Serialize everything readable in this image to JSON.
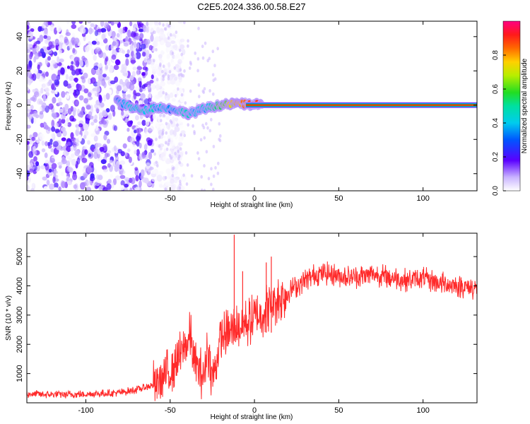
{
  "title": "C2E5.2024.336.00.58.E27",
  "chart_data": [
    {
      "type": "heatmap",
      "xlabel": "Height of straight line (km)",
      "ylabel": "Frequency (Hz)",
      "xlim": [
        -135,
        132
      ],
      "ylim": [
        -50,
        49
      ],
      "x_ticks": [
        -100,
        -50,
        0,
        50,
        100
      ],
      "x_tick_labels": [
        "-100",
        "-50",
        "0",
        "50",
        "100"
      ],
      "y_ticks": [
        -40,
        -20,
        0,
        20,
        40
      ],
      "y_tick_labels": [
        "-40",
        "-20",
        "0",
        "20",
        "40"
      ],
      "noise_region_x": [
        -135,
        -60
      ],
      "signal_track": [
        {
          "x": -82,
          "y": 3,
          "amp": 0.3
        },
        {
          "x": -78,
          "y": 1,
          "amp": 0.4
        },
        {
          "x": -72,
          "y": -2,
          "amp": 0.4
        },
        {
          "x": -65,
          "y": -3,
          "amp": 0.45
        },
        {
          "x": -58,
          "y": -1,
          "amp": 0.4
        },
        {
          "x": -52,
          "y": -2,
          "amp": 0.35
        },
        {
          "x": -45,
          "y": -3,
          "amp": 0.4
        },
        {
          "x": -40,
          "y": -5,
          "amp": 0.45
        },
        {
          "x": -35,
          "y": -4,
          "amp": 0.4
        },
        {
          "x": -30,
          "y": -2,
          "amp": 0.4
        },
        {
          "x": -25,
          "y": -1,
          "amp": 0.5
        },
        {
          "x": -20,
          "y": 0,
          "amp": 0.6
        },
        {
          "x": -15,
          "y": 0.5,
          "amp": 0.7
        },
        {
          "x": -10,
          "y": 1,
          "amp": 0.75
        },
        {
          "x": -5,
          "y": 0.5,
          "amp": 0.85
        },
        {
          "x": 0,
          "y": 0.3,
          "amp": 0.9
        },
        {
          "x": 5,
          "y": 0.2,
          "amp": 0.92
        }
      ],
      "carrier": {
        "x_start": -5,
        "x_end": 132,
        "y": 0,
        "amp": 0.95
      },
      "colorbar": {
        "label": "Normalized spectral amplitude",
        "range": [
          0,
          1
        ],
        "ticks": [
          0.0,
          0.2,
          0.4,
          0.6,
          0.8
        ],
        "tick_labels": [
          "0.0",
          "0.2",
          "0.4",
          "0.6",
          "0.8"
        ]
      },
      "colors": {
        "noise": "#7a1cff",
        "carrier": "#ff2a00",
        "carrier_edge": "#16c34a"
      }
    },
    {
      "type": "line",
      "xlabel": "Height of straight line (km)",
      "ylabel": "SNR (10 * v/v)",
      "xlim": [
        -135,
        132
      ],
      "ylim": [
        0,
        5800
      ],
      "x_ticks": [
        -100,
        -50,
        0,
        50,
        100
      ],
      "x_tick_labels": [
        "-100",
        "-50",
        "0",
        "50",
        "100"
      ],
      "y_ticks": [
        1000,
        2000,
        3000,
        4000,
        5000
      ],
      "y_tick_labels": [
        "1000",
        "2000",
        "3000",
        "4000",
        "5000"
      ],
      "series": [
        {
          "color": "#ff2a2a",
          "x": [
            -135,
            -120,
            -100,
            -90,
            -80,
            -70,
            -60,
            -55,
            -50,
            -45,
            -40,
            -38,
            -35,
            -30,
            -28,
            -25,
            -20,
            -15,
            -12,
            -10,
            -5,
            0,
            5,
            10,
            15,
            20,
            25,
            30,
            35,
            40,
            50,
            60,
            70,
            80,
            90,
            100,
            110,
            120,
            132
          ],
          "y": [
            300,
            280,
            300,
            320,
            350,
            450,
            600,
            800,
            1100,
            1500,
            2000,
            2300,
            1300,
            900,
            1900,
            800,
            2200,
            2400,
            2500,
            2600,
            2700,
            2900,
            3100,
            3400,
            3600,
            3800,
            4000,
            4200,
            4350,
            4450,
            4350,
            4300,
            4400,
            4300,
            4200,
            4250,
            4100,
            4000,
            3900
          ],
          "spikes": [
            {
              "x": -12,
              "y": 5750
            },
            {
              "x": -7,
              "y": 4500
            },
            {
              "x": 7,
              "y": 4800
            },
            {
              "x": 10,
              "y": 5000
            }
          ]
        }
      ]
    }
  ]
}
